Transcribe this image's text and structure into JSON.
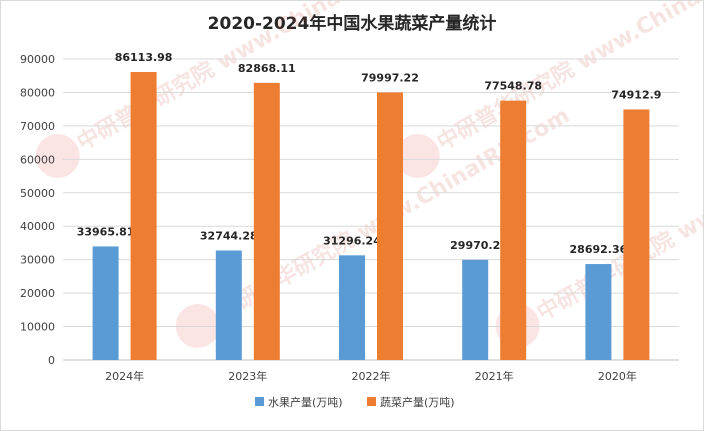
{
  "chart_data": {
    "type": "bar",
    "title": "2020-2024年中国水果蔬菜产量统计",
    "categories": [
      "2024年",
      "2023年",
      "2022年",
      "2021年",
      "2020年"
    ],
    "series": [
      {
        "name": "水果产量(万吨)",
        "values": [
          33965.81,
          32744.28,
          31296.24,
          29970.2,
          28692.36
        ],
        "labels": [
          "33965.81",
          "32744.28",
          "31296.24",
          "29970.2",
          "28692.36"
        ],
        "color": "#5b9bd5"
      },
      {
        "name": "蔬菜产量(万吨)",
        "values": [
          86113.98,
          82868.11,
          79997.22,
          77548.78,
          74912.9
        ],
        "labels": [
          "86113.98",
          "82868.11",
          "79997.22",
          "77548.78",
          "74912.9"
        ],
        "color": "#ed7d31"
      }
    ],
    "ylim": [
      0,
      90000
    ],
    "yticks": [
      "0",
      "10000",
      "20000",
      "30000",
      "40000",
      "50000",
      "60000",
      "70000",
      "80000",
      "90000"
    ],
    "grid": true,
    "legend_position": "bottom",
    "watermark": "中研普华研究院 www.ChinaIRN.com"
  }
}
